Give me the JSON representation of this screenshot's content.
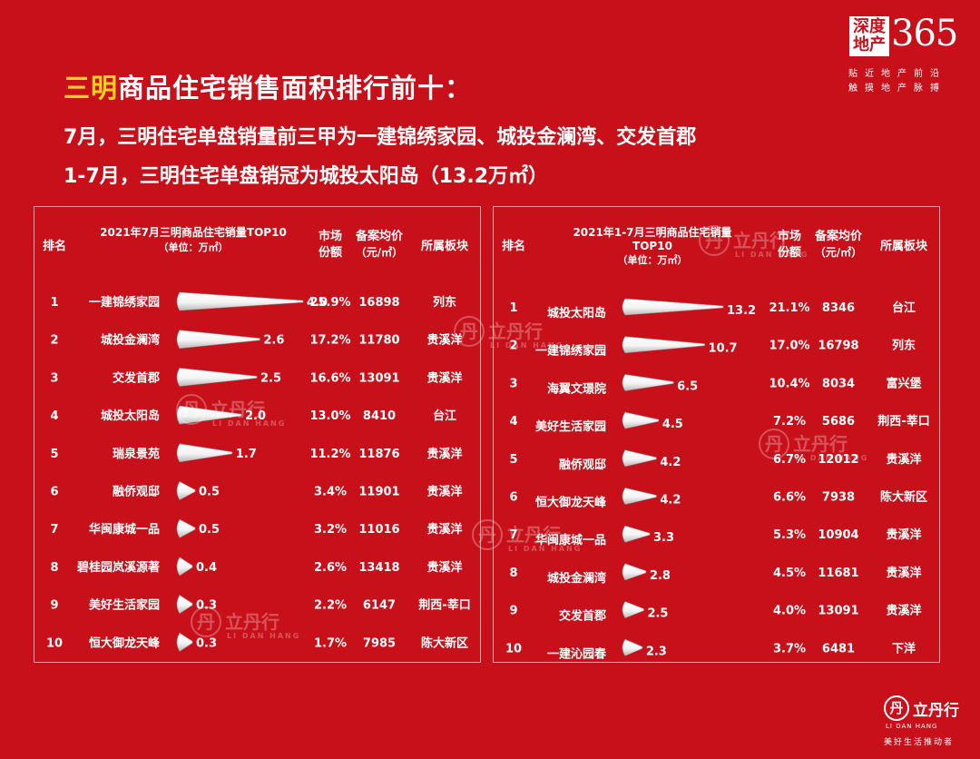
{
  "headline": {
    "highlight": "三明",
    "rest": "商品住宅销售面积排行前十："
  },
  "subline1": "7月，三明住宅单盘销量前三甲为一建锦绣家园、城投金澜湾、交发首郡",
  "subline2": "1-7月，三明住宅单盘销冠为城投太阳岛（13.2万㎡）",
  "logo": {
    "box_line1": "深度",
    "box_line2": "地产",
    "number": "365",
    "slogan1": "贴近地产前沿",
    "slogan2": "触摸地产脉搏"
  },
  "brand": {
    "mark": "丹",
    "name": "立丹行",
    "en": "LI DAN HANG",
    "tagline": "美好生活推动者"
  },
  "watermark": {
    "name": "立丹行",
    "en": "LI DAN HANG"
  },
  "colors": {
    "background": "#c8101a",
    "accent": "#ffd21f",
    "bar": "#ffffff"
  },
  "chart_data": [
    {
      "type": "bar",
      "title_line1": "2021年7月三明商品住宅销量TOP10",
      "title_line2": "",
      "unit": "（单位：万㎡）",
      "headers": {
        "rank": "排名",
        "share": "市场份额",
        "share_line1": "市场",
        "share_line2": "份额",
        "price_line1": "备案均价",
        "price_line2": "（元/㎡）",
        "region": "所属板块"
      },
      "categories": [
        "一建锦绣家园",
        "城投金澜湾",
        "交发首郡",
        "城投太阳岛",
        "瑞泉景苑",
        "融侨观邸",
        "华闽康城一品",
        "碧桂园岚溪源著",
        "美好生活家园",
        "恒大御龙天峰"
      ],
      "values": [
        4.0,
        2.6,
        2.5,
        2.0,
        1.7,
        0.5,
        0.5,
        0.4,
        0.3,
        0.3
      ],
      "value_labels": [
        "4.0",
        "2.6",
        "2.5",
        "2.0",
        "1.7",
        "0.5",
        "0.5",
        "0.4",
        "0.3",
        "0.3"
      ],
      "ranks": [
        "1",
        "2",
        "3",
        "4",
        "5",
        "6",
        "7",
        "8",
        "9",
        "10"
      ],
      "share": [
        "25.9%",
        "17.2%",
        "16.6%",
        "13.0%",
        "11.2%",
        "3.4%",
        "3.2%",
        "2.6%",
        "2.2%",
        "1.7%"
      ],
      "price": [
        "16898",
        "11780",
        "13091",
        "8410",
        "11876",
        "11901",
        "11016",
        "13418",
        "6147",
        "7985"
      ],
      "region": [
        "列东",
        "贵溪洋",
        "贵溪洋",
        "台江",
        "贵溪洋",
        "贵溪洋",
        "贵溪洋",
        "贵溪洋",
        "荆西-莘口",
        "陈大新区"
      ],
      "xlim": [
        0,
        4.0
      ]
    },
    {
      "type": "bar",
      "title_line1": "2021年1-7月三明商品住宅销量",
      "title_line2": "TOP10",
      "unit": "（单位：万㎡）",
      "headers": {
        "rank": "排名",
        "share_line1": "市场",
        "share_line2": "份额",
        "price_line1": "备案均价",
        "price_line2": "（元/㎡）",
        "region": "所属板块"
      },
      "categories": [
        "城投太阳岛",
        "一建锦绣家园",
        "海翼文璟院",
        "美好生活家园",
        "融侨观邸",
        "恒大御龙天峰",
        "华闽康城一品",
        "城投金澜湾",
        "交发首郡",
        "一建沁园春"
      ],
      "values": [
        13.2,
        10.7,
        6.5,
        4.5,
        4.2,
        4.2,
        3.3,
        2.8,
        2.5,
        2.3
      ],
      "value_labels": [
        "13.2",
        "10.7",
        "6.5",
        "4.5",
        "4.2",
        "4.2",
        "3.3",
        "2.8",
        "2.5",
        "2.3"
      ],
      "ranks": [
        "1",
        "2",
        "3",
        "4",
        "5",
        "6",
        "7",
        "8",
        "9",
        "10"
      ],
      "share": [
        "21.1%",
        "17.0%",
        "10.4%",
        "7.2%",
        "6.7%",
        "6.6%",
        "5.3%",
        "4.5%",
        "4.0%",
        "3.7%"
      ],
      "price": [
        "8346",
        "16798",
        "8034",
        "5686",
        "12012",
        "7938",
        "10904",
        "11681",
        "13091",
        "6481"
      ],
      "region": [
        "台江",
        "列东",
        "富兴堡",
        "荆西-莘口",
        "贵溪洋",
        "陈大新区",
        "贵溪洋",
        "贵溪洋",
        "贵溪洋",
        "下洋"
      ],
      "xlim": [
        0,
        13.2
      ]
    }
  ]
}
